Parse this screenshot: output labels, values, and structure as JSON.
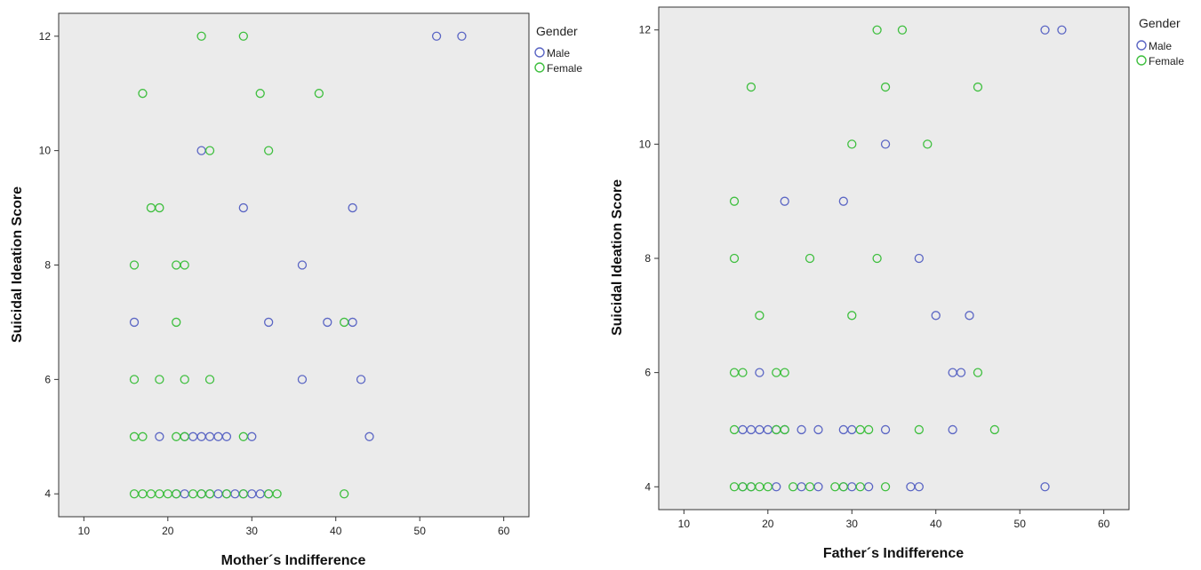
{
  "colors": {
    "plot_background": "#ebebeb",
    "male": "#5b66c4",
    "female": "#3fbf3f"
  },
  "chart_data": [
    {
      "type": "scatter",
      "title": "",
      "xlabel": "Mother´s Indifference",
      "ylabel": "Suicidal Ideation Score",
      "xlim": [
        7,
        63
      ],
      "ylim": [
        3.6,
        12.4
      ],
      "xticks": [
        10,
        20,
        30,
        40,
        50,
        60
      ],
      "yticks": [
        4,
        6,
        8,
        10,
        12
      ],
      "grid": false,
      "legend": {
        "title": "Gender",
        "position": "right",
        "entries": [
          "Male",
          "Female"
        ]
      },
      "series": [
        {
          "name": "Male",
          "points": [
            [
              52,
              12
            ],
            [
              55,
              12
            ],
            [
              24,
              10
            ],
            [
              29,
              9
            ],
            [
              42,
              9
            ],
            [
              36,
              8
            ],
            [
              16,
              7
            ],
            [
              32,
              7
            ],
            [
              39,
              7
            ],
            [
              42,
              7
            ],
            [
              36,
              6
            ],
            [
              43,
              6
            ],
            [
              19,
              5
            ],
            [
              22,
              5
            ],
            [
              23,
              5
            ],
            [
              24,
              5
            ],
            [
              25,
              5
            ],
            [
              26,
              5
            ],
            [
              27,
              5
            ],
            [
              30,
              5
            ],
            [
              44,
              5
            ],
            [
              21,
              4
            ],
            [
              22,
              4
            ],
            [
              24,
              4
            ],
            [
              25,
              4
            ],
            [
              26,
              4
            ],
            [
              27,
              4
            ],
            [
              28,
              4
            ],
            [
              29,
              4
            ],
            [
              30,
              4
            ],
            [
              31,
              4
            ],
            [
              32,
              4
            ]
          ]
        },
        {
          "name": "Female",
          "points": [
            [
              24,
              12
            ],
            [
              29,
              12
            ],
            [
              17,
              11
            ],
            [
              31,
              11
            ],
            [
              38,
              11
            ],
            [
              25,
              10
            ],
            [
              32,
              10
            ],
            [
              18,
              9
            ],
            [
              19,
              9
            ],
            [
              16,
              8
            ],
            [
              21,
              8
            ],
            [
              22,
              8
            ],
            [
              21,
              7
            ],
            [
              41,
              7
            ],
            [
              16,
              6
            ],
            [
              19,
              6
            ],
            [
              22,
              6
            ],
            [
              25,
              6
            ],
            [
              16,
              5
            ],
            [
              17,
              5
            ],
            [
              21,
              5
            ],
            [
              22,
              5
            ],
            [
              29,
              5
            ],
            [
              16,
              4
            ],
            [
              17,
              4
            ],
            [
              18,
              4
            ],
            [
              19,
              4
            ],
            [
              20,
              4
            ],
            [
              21,
              4
            ],
            [
              23,
              4
            ],
            [
              24,
              4
            ],
            [
              25,
              4
            ],
            [
              27,
              4
            ],
            [
              29,
              4
            ],
            [
              32,
              4
            ],
            [
              33,
              4
            ],
            [
              41,
              4
            ]
          ]
        }
      ]
    },
    {
      "type": "scatter",
      "title": "",
      "xlabel": "Father´s Indifference",
      "ylabel": "Suicidal Ideation Score",
      "xlim": [
        7,
        63
      ],
      "ylim": [
        3.6,
        12.4
      ],
      "xticks": [
        10,
        20,
        30,
        40,
        50,
        60
      ],
      "yticks": [
        4,
        6,
        8,
        10,
        12
      ],
      "grid": false,
      "legend": {
        "title": "Gender",
        "position": "right",
        "entries": [
          "Male",
          "Female"
        ]
      },
      "series": [
        {
          "name": "Male",
          "points": [
            [
              53,
              12
            ],
            [
              55,
              12
            ],
            [
              34,
              10
            ],
            [
              22,
              9
            ],
            [
              29,
              9
            ],
            [
              38,
              8
            ],
            [
              40,
              7
            ],
            [
              44,
              7
            ],
            [
              19,
              6
            ],
            [
              42,
              6
            ],
            [
              43,
              6
            ],
            [
              17,
              5
            ],
            [
              18,
              5
            ],
            [
              19,
              5
            ],
            [
              20,
              5
            ],
            [
              21,
              5
            ],
            [
              22,
              5
            ],
            [
              24,
              5
            ],
            [
              26,
              5
            ],
            [
              29,
              5
            ],
            [
              30,
              5
            ],
            [
              34,
              5
            ],
            [
              42,
              5
            ],
            [
              17,
              4
            ],
            [
              18,
              4
            ],
            [
              21,
              4
            ],
            [
              24,
              4
            ],
            [
              26,
              4
            ],
            [
              29,
              4
            ],
            [
              30,
              4
            ],
            [
              32,
              4
            ],
            [
              37,
              4
            ],
            [
              38,
              4
            ],
            [
              53,
              4
            ]
          ]
        },
        {
          "name": "Female",
          "points": [
            [
              33,
              12
            ],
            [
              36,
              12
            ],
            [
              18,
              11
            ],
            [
              34,
              11
            ],
            [
              45,
              11
            ],
            [
              30,
              10
            ],
            [
              39,
              10
            ],
            [
              16,
              9
            ],
            [
              16,
              8
            ],
            [
              25,
              8
            ],
            [
              33,
              8
            ],
            [
              19,
              7
            ],
            [
              30,
              7
            ],
            [
              16,
              6
            ],
            [
              17,
              6
            ],
            [
              21,
              6
            ],
            [
              22,
              6
            ],
            [
              45,
              6
            ],
            [
              16,
              5
            ],
            [
              21,
              5
            ],
            [
              22,
              5
            ],
            [
              31,
              5
            ],
            [
              32,
              5
            ],
            [
              38,
              5
            ],
            [
              47,
              5
            ],
            [
              16,
              4
            ],
            [
              17,
              4
            ],
            [
              18,
              4
            ],
            [
              19,
              4
            ],
            [
              20,
              4
            ],
            [
              23,
              4
            ],
            [
              25,
              4
            ],
            [
              28,
              4
            ],
            [
              29,
              4
            ],
            [
              31,
              4
            ],
            [
              34,
              4
            ]
          ]
        }
      ]
    }
  ]
}
